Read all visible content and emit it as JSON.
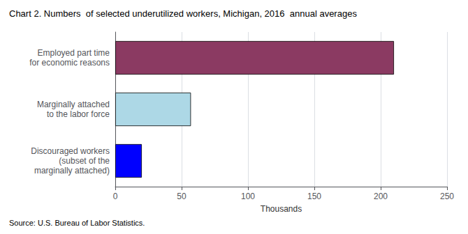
{
  "chart_data": {
    "type": "bar",
    "orientation": "horizontal",
    "title": "Chart 2. Numbers  of selected underutilized workers, Michigan, 2016  annual averages",
    "categories": [
      "Discouraged workers\n(subset of the\nmarginally attached)",
      "Marginally attached\nto the labor force",
      "Employed part time\nfor economic reasons"
    ],
    "values": [
      20,
      57,
      210
    ],
    "colors": [
      "#0000ff",
      "#add8e6",
      "#8b3a62"
    ],
    "xlabel": "Thousands",
    "xlim": [
      0,
      250
    ],
    "xticks": [
      0,
      50,
      100,
      150,
      200,
      250
    ],
    "grid": true,
    "annotation": "Source: U.S. Bureau of Labor Statistics."
  }
}
